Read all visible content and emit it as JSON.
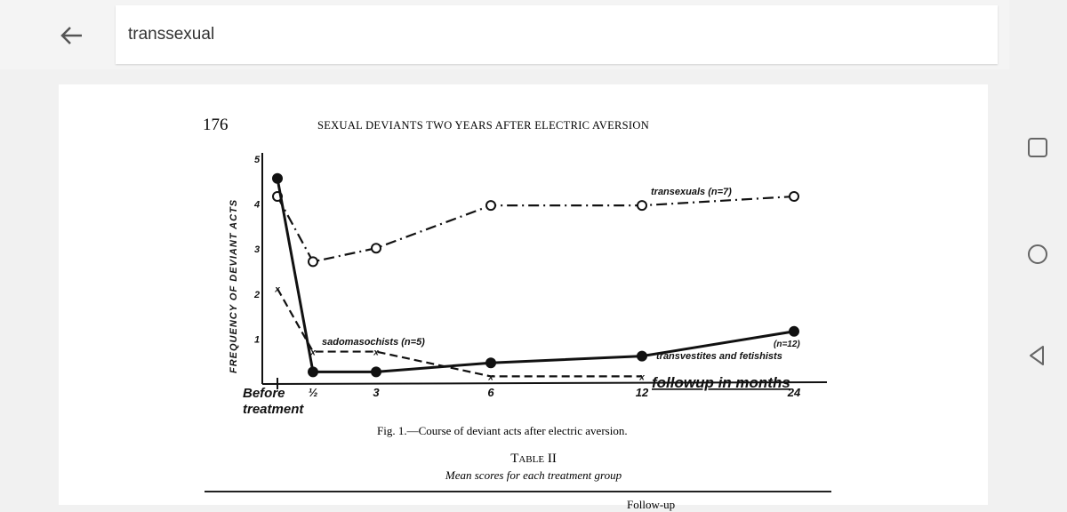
{
  "search": {
    "query": "transsexual",
    "back_icon": "arrow-left-icon"
  },
  "nav": {
    "icons": [
      "square-recents-icon",
      "circle-home-icon",
      "triangle-back-icon"
    ]
  },
  "document": {
    "page_number": "176",
    "running_head": "SEXUAL DEVIANTS TWO YEARS AFTER ELECTRIC AVERSION",
    "figure_caption": "Fig. 1.—Course of deviant acts after electric aversion.",
    "table_title": "Table II",
    "table_subtitle": "Mean scores for each treatment group",
    "table_partial_header": "Follow-up"
  },
  "chart_data": {
    "type": "line",
    "ylabel": "FREQUENCY OF DEVIANT ACTS",
    "xlabel": "followup in months",
    "categories": [
      "Before treatment",
      "½",
      "3",
      "6",
      "12",
      "24"
    ],
    "yticks": [
      "1",
      "2",
      "3",
      "4",
      "5"
    ],
    "ylim": [
      0,
      5
    ],
    "grid": false,
    "series": [
      {
        "name": "transexuals (n=7)",
        "marker": "open-circle",
        "style": "dash-dot",
        "values": [
          4.15,
          2.7,
          3.0,
          3.95,
          3.95,
          4.15
        ]
      },
      {
        "name": "transvestites and fetishists (n=12)",
        "marker": "filled-circle",
        "style": "solid",
        "values": [
          4.55,
          0.25,
          0.25,
          0.45,
          0.6,
          1.15
        ]
      },
      {
        "name": "sadomasochists (n=5)",
        "marker": "x",
        "style": "dashed",
        "values": [
          2.1,
          0.7,
          0.7,
          0.15,
          0.15,
          null
        ]
      }
    ],
    "labels": {
      "tx": "transexuals (n=7)",
      "tf1": "(n=12)",
      "tf2": "transvestites and fetishists",
      "sm": "sadomasochists (n=5)",
      "before1": "Before",
      "before2": "treatment"
    }
  }
}
